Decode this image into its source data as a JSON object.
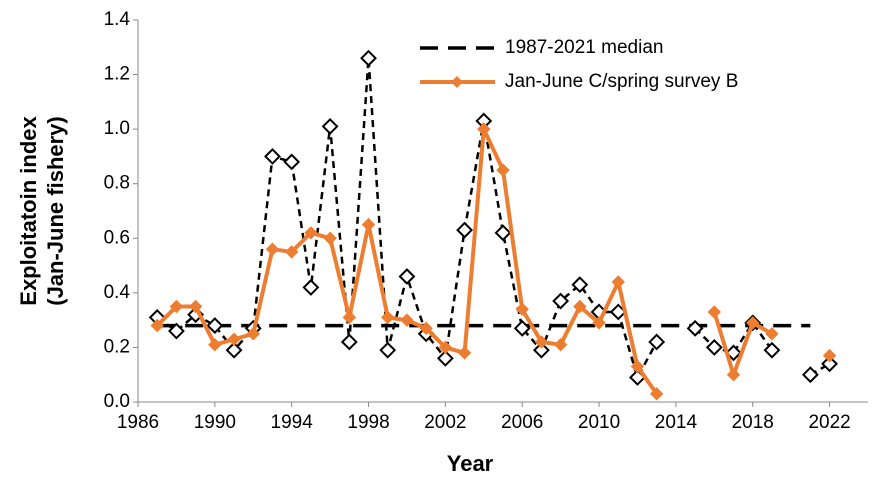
{
  "chart_data": {
    "type": "line",
    "xlabel": "Year",
    "ylabel": [
      "Exploitatoin index",
      "(Jan-June fishery)"
    ],
    "x": [
      1987,
      1988,
      1989,
      1990,
      1991,
      1992,
      1993,
      1994,
      1995,
      1996,
      1997,
      1998,
      1999,
      2000,
      2001,
      2002,
      2003,
      2004,
      2005,
      2006,
      2007,
      2008,
      2009,
      2010,
      2011,
      2012,
      2013,
      2014,
      2015,
      2016,
      2017,
      2018,
      2019,
      2020,
      2021,
      2022
    ],
    "series": [
      {
        "color": "#000000",
        "style": "dashed",
        "marker": "hollow-diamond",
        "values": [
          0.31,
          0.26,
          0.32,
          0.28,
          0.19,
          0.27,
          0.9,
          0.88,
          0.42,
          1.01,
          0.22,
          1.26,
          0.19,
          0.46,
          0.25,
          0.16,
          0.63,
          1.03,
          0.62,
          0.27,
          0.19,
          0.37,
          0.43,
          0.33,
          0.33,
          0.09,
          0.22,
          null,
          0.27,
          0.2,
          0.18,
          0.29,
          0.19,
          null,
          0.1,
          0.14
        ]
      },
      {
        "name": "Jan-June C/spring survey B",
        "color": "#ed7d31",
        "style": "solid",
        "marker": "filled-diamond",
        "values": [
          0.28,
          0.35,
          0.35,
          0.21,
          0.23,
          0.25,
          0.56,
          0.55,
          0.62,
          0.6,
          0.31,
          0.65,
          0.31,
          0.3,
          0.27,
          0.2,
          0.18,
          1.0,
          0.85,
          0.34,
          0.22,
          0.21,
          0.35,
          0.29,
          0.44,
          0.13,
          0.03,
          null,
          null,
          0.33,
          0.1,
          0.29,
          0.25,
          null,
          null,
          0.17
        ]
      }
    ],
    "median": {
      "name": "1987-2021 median",
      "color": "#000000",
      "value": 0.28,
      "x": [
        1987,
        2021
      ]
    },
    "xlim": [
      1986,
      2024
    ],
    "xticks": [
      1986,
      1990,
      1994,
      1998,
      2002,
      2006,
      2010,
      2014,
      2018,
      2022
    ],
    "ylim": [
      0,
      1.4
    ],
    "yticks": [
      {
        "value": 0,
        "label": "0.0"
      },
      0.2,
      0.4,
      0.6,
      0.8,
      {
        "value": 1,
        "label": "1.0"
      },
      1.2,
      1.4
    ],
    "legend": "upper-right"
  }
}
